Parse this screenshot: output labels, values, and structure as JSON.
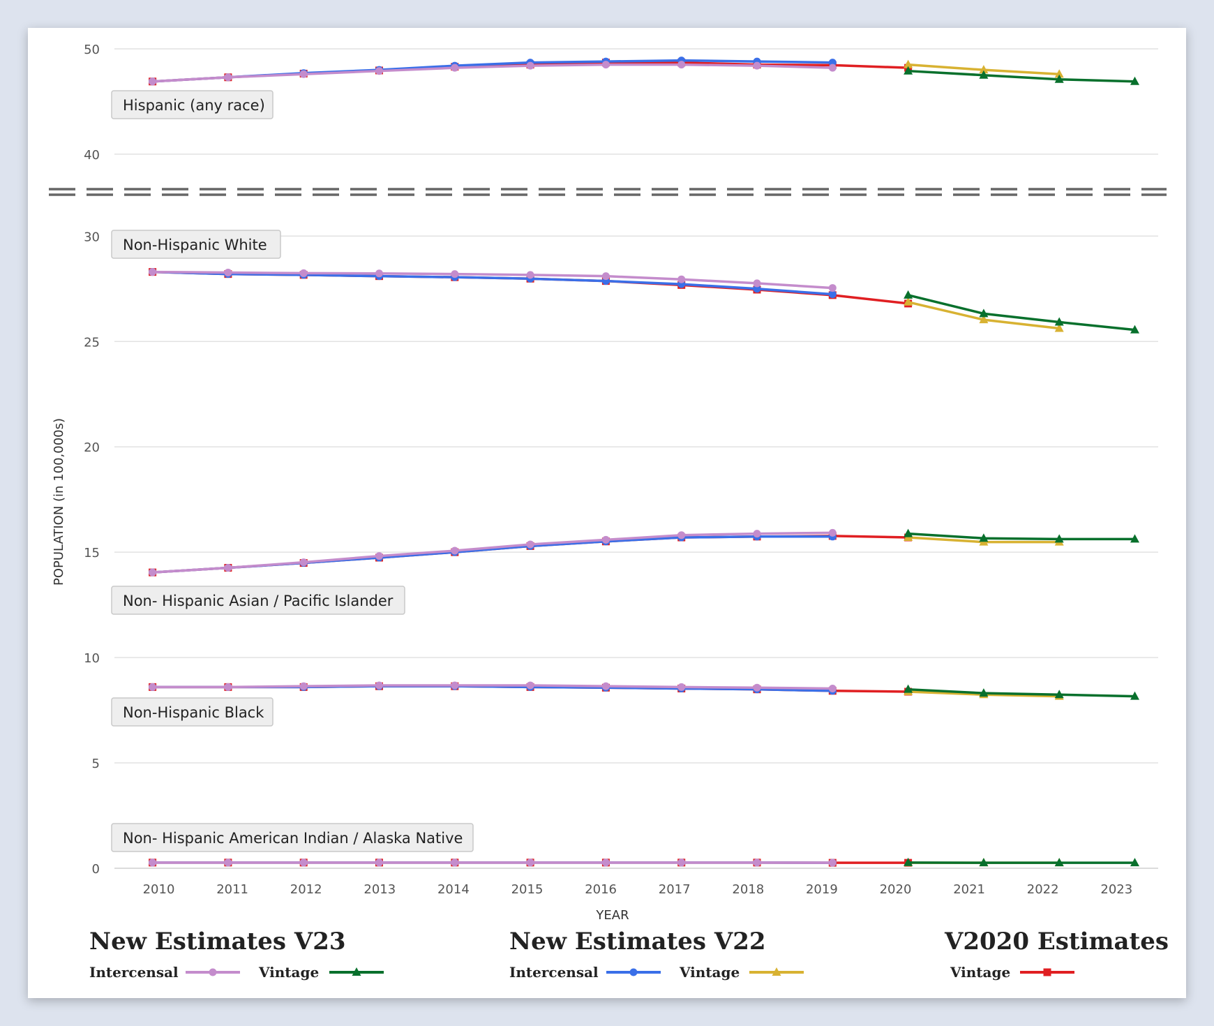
{
  "chart_data": {
    "type": "line",
    "xlabel": "YEAR",
    "ylabel": "POPULATION (in 100,000s)",
    "x": [
      2010,
      2011,
      2012,
      2013,
      2014,
      2015,
      2016,
      2017,
      2018,
      2019,
      2020,
      2021,
      2022,
      2023
    ],
    "y_axis": {
      "broken": true,
      "lower_range": [
        0,
        30
      ],
      "upper_range": [
        40,
        50
      ],
      "lower_ticks": [
        0,
        5,
        10,
        15,
        20,
        25,
        30
      ],
      "upper_ticks": [
        40,
        50
      ]
    },
    "grid": true,
    "legend_placement": "bottom",
    "legend_groups": [
      {
        "title": "New Estimates V23",
        "items": [
          {
            "label": "Intercensal",
            "series": "v23_intercensal"
          },
          {
            "label": "Vintage",
            "series": "v23_vintage"
          }
        ]
      },
      {
        "title": "New Estimates V22",
        "items": [
          {
            "label": "Intercensal",
            "series": "v22_intercensal"
          },
          {
            "label": "Vintage",
            "series": "v22_vintage"
          }
        ]
      },
      {
        "title": "V2020 Estimates",
        "items": [
          {
            "label": "Vintage",
            "series": "v2020_vintage"
          }
        ]
      }
    ],
    "series_styles": {
      "v23_intercensal": {
        "color": "#c48ccc",
        "marker": "circle"
      },
      "v23_vintage": {
        "color": "#08702c",
        "marker": "triangle"
      },
      "v22_intercensal": {
        "color": "#3a6fe8",
        "marker": "circle"
      },
      "v22_vintage": {
        "color": "#d8b232",
        "marker": "triangle"
      },
      "v2020_vintage": {
        "color": "#e01f22",
        "marker": "square"
      }
    },
    "groups": [
      {
        "label": "Hispanic (any race)",
        "panel": "upper",
        "v2020_vintage": [
          46.9,
          47.3,
          47.65,
          47.95,
          48.3,
          48.5,
          48.7,
          48.7,
          48.5,
          48.45,
          48.2,
          null,
          null,
          null
        ],
        "v22_intercensal": [
          46.9,
          47.3,
          47.7,
          48.0,
          48.4,
          48.7,
          48.8,
          48.9,
          48.8,
          48.7,
          null,
          null,
          null,
          null
        ],
        "v23_intercensal": [
          46.9,
          47.3,
          47.6,
          47.9,
          48.2,
          48.4,
          48.5,
          48.5,
          48.4,
          48.2,
          null,
          null,
          null,
          null
        ],
        "v22_vintage": [
          null,
          null,
          null,
          null,
          null,
          null,
          null,
          null,
          null,
          null,
          48.5,
          48.0,
          47.6,
          null
        ],
        "v23_vintage": [
          null,
          null,
          null,
          null,
          null,
          null,
          null,
          null,
          null,
          null,
          47.9,
          47.5,
          47.1,
          46.9
        ]
      },
      {
        "label": "Non-Hispanic White",
        "panel": "lower",
        "v2020_vintage": [
          28.3,
          28.2,
          28.16,
          28.1,
          28.05,
          27.98,
          27.87,
          27.68,
          27.46,
          27.2,
          26.8,
          null,
          null,
          null
        ],
        "v22_intercensal": [
          28.3,
          28.2,
          28.16,
          28.1,
          28.05,
          27.98,
          27.87,
          27.72,
          27.5,
          27.24,
          null,
          null,
          null,
          null
        ],
        "v23_intercensal": [
          28.3,
          28.27,
          28.24,
          28.23,
          28.2,
          28.16,
          28.1,
          27.95,
          27.76,
          27.54,
          null,
          null,
          null,
          null
        ],
        "v22_vintage": [
          null,
          null,
          null,
          null,
          null,
          null,
          null,
          null,
          null,
          null,
          26.87,
          26.03,
          25.62,
          null
        ],
        "v23_vintage": [
          null,
          null,
          null,
          null,
          null,
          null,
          null,
          null,
          null,
          null,
          27.2,
          26.32,
          25.92,
          25.55
        ]
      },
      {
        "label": "Non- Hispanic Asian / Pacific Islander",
        "panel": "lower",
        "v2020_vintage": [
          14.04,
          14.26,
          14.49,
          14.74,
          15.0,
          15.29,
          15.51,
          15.7,
          15.74,
          15.77,
          15.7,
          null,
          null,
          null
        ],
        "v22_intercensal": [
          14.04,
          14.26,
          14.49,
          14.74,
          15.0,
          15.29,
          15.51,
          15.7,
          15.74,
          15.74,
          null,
          null,
          null,
          null
        ],
        "v23_intercensal": [
          14.04,
          14.26,
          14.52,
          14.82,
          15.07,
          15.37,
          15.59,
          15.81,
          15.88,
          15.92,
          null,
          null,
          null,
          null
        ],
        "v22_vintage": [
          null,
          null,
          null,
          null,
          null,
          null,
          null,
          null,
          null,
          null,
          15.7,
          15.48,
          15.48,
          null
        ],
        "v23_vintage": [
          null,
          null,
          null,
          null,
          null,
          null,
          null,
          null,
          null,
          null,
          15.88,
          15.66,
          15.62,
          15.62
        ]
      },
      {
        "label": "Non-Hispanic Black",
        "panel": "lower",
        "v2020_vintage": [
          8.6,
          8.6,
          8.6,
          8.64,
          8.64,
          8.6,
          8.57,
          8.53,
          8.49,
          8.42,
          8.38,
          null,
          null,
          null
        ],
        "v22_intercensal": [
          8.6,
          8.6,
          8.6,
          8.64,
          8.64,
          8.6,
          8.57,
          8.53,
          8.49,
          8.42,
          null,
          null,
          null,
          null
        ],
        "v23_intercensal": [
          8.6,
          8.6,
          8.64,
          8.68,
          8.68,
          8.68,
          8.64,
          8.6,
          8.57,
          8.53,
          null,
          null,
          null,
          null
        ],
        "v22_vintage": [
          null,
          null,
          null,
          null,
          null,
          null,
          null,
          null,
          null,
          null,
          8.38,
          8.24,
          8.16,
          null
        ],
        "v23_vintage": [
          null,
          null,
          null,
          null,
          null,
          null,
          null,
          null,
          null,
          null,
          8.49,
          8.31,
          8.24,
          8.16
        ]
      },
      {
        "label": "Non- Hispanic American Indian / Alaska Native",
        "panel": "lower",
        "v2020_vintage": [
          0.27,
          0.27,
          0.27,
          0.27,
          0.27,
          0.27,
          0.27,
          0.27,
          0.27,
          0.26,
          0.26,
          null,
          null,
          null
        ],
        "v22_intercensal": [
          0.27,
          0.27,
          0.27,
          0.27,
          0.27,
          0.27,
          0.27,
          0.27,
          0.27,
          0.26,
          null,
          null,
          null,
          null
        ],
        "v23_intercensal": [
          0.27,
          0.27,
          0.27,
          0.27,
          0.27,
          0.27,
          0.27,
          0.27,
          0.27,
          0.26,
          null,
          null,
          null,
          null
        ],
        "v22_vintage": [
          null,
          null,
          null,
          null,
          null,
          null,
          null,
          null,
          null,
          null,
          0.26,
          0.26,
          0.26,
          null
        ],
        "v23_vintage": [
          null,
          null,
          null,
          null,
          null,
          null,
          null,
          null,
          null,
          null,
          0.27,
          0.26,
          0.26,
          0.26
        ]
      }
    ]
  }
}
